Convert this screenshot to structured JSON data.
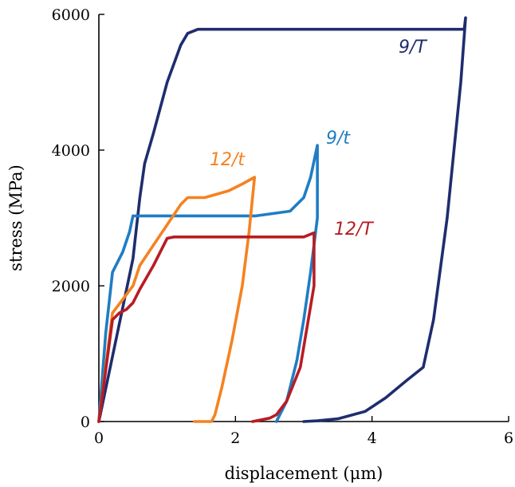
{
  "chart_data": {
    "type": "line",
    "title": "",
    "xlabel": "displacement (μm)",
    "ylabel": "stress (MPa)",
    "xlim": [
      0,
      6
    ],
    "ylim": [
      0,
      6000
    ],
    "xticks": [
      0,
      2,
      4,
      6
    ],
    "yticks": [
      0,
      2000,
      4000,
      6000
    ],
    "xtick_labels": [
      "0",
      "2",
      "4",
      "6"
    ],
    "ytick_labels": [
      "0",
      "2000",
      "4000",
      "6000"
    ],
    "grid": false,
    "legend": "none (series labelled inline)",
    "series": [
      {
        "name": "9/T",
        "color": "#1f2d6e",
        "points": [
          [
            0,
            0
          ],
          [
            0.5,
            2400
          ],
          [
            0.6,
            3300
          ],
          [
            0.67,
            3800
          ],
          [
            0.8,
            4250
          ],
          [
            1.0,
            5000
          ],
          [
            1.2,
            5550
          ],
          [
            1.3,
            5720
          ],
          [
            1.45,
            5780
          ],
          [
            3.0,
            5780
          ],
          [
            5.35,
            5780
          ],
          [
            5.37,
            5950
          ],
          [
            5.3,
            5000
          ],
          [
            5.1,
            3000
          ],
          [
            4.9,
            1500
          ],
          [
            4.75,
            800
          ],
          [
            4.5,
            600
          ],
          [
            4.2,
            350
          ],
          [
            3.9,
            150
          ],
          [
            3.5,
            40
          ],
          [
            3.2,
            10
          ],
          [
            3.0,
            0
          ]
        ]
      },
      {
        "name": "9/t",
        "color": "#1f7dc4",
        "points": [
          [
            0,
            0
          ],
          [
            0.1,
            1300
          ],
          [
            0.2,
            2200
          ],
          [
            0.35,
            2500
          ],
          [
            0.45,
            2800
          ],
          [
            0.5,
            3030
          ],
          [
            1.5,
            3030
          ],
          [
            2.3,
            3030
          ],
          [
            2.8,
            3100
          ],
          [
            3.0,
            3300
          ],
          [
            3.1,
            3600
          ],
          [
            3.2,
            4070
          ],
          [
            3.2,
            3000
          ],
          [
            3.1,
            2200
          ],
          [
            3.0,
            1500
          ],
          [
            2.9,
            900
          ],
          [
            2.75,
            300
          ],
          [
            2.6,
            0
          ]
        ]
      },
      {
        "name": "12/t",
        "color": "#f58220",
        "points": [
          [
            0,
            0
          ],
          [
            0.2,
            1600
          ],
          [
            0.35,
            1800
          ],
          [
            0.5,
            2000
          ],
          [
            0.6,
            2300
          ],
          [
            0.8,
            2600
          ],
          [
            1.0,
            2900
          ],
          [
            1.2,
            3200
          ],
          [
            1.3,
            3300
          ],
          [
            1.55,
            3300
          ],
          [
            1.9,
            3400
          ],
          [
            2.1,
            3500
          ],
          [
            2.28,
            3600
          ],
          [
            2.2,
            2800
          ],
          [
            2.1,
            2000
          ],
          [
            1.95,
            1200
          ],
          [
            1.8,
            500
          ],
          [
            1.7,
            100
          ],
          [
            1.65,
            0
          ],
          [
            1.4,
            0
          ]
        ]
      },
      {
        "name": "12/T",
        "color": "#b81c23",
        "points": [
          [
            0,
            0
          ],
          [
            0.2,
            1500
          ],
          [
            0.3,
            1600
          ],
          [
            0.4,
            1650
          ],
          [
            0.5,
            1750
          ],
          [
            0.6,
            1950
          ],
          [
            0.8,
            2300
          ],
          [
            1.0,
            2700
          ],
          [
            1.1,
            2720
          ],
          [
            2.0,
            2720
          ],
          [
            3.0,
            2720
          ],
          [
            3.15,
            2780
          ],
          [
            3.15,
            2000
          ],
          [
            3.05,
            1400
          ],
          [
            2.95,
            800
          ],
          [
            2.75,
            300
          ],
          [
            2.6,
            100
          ],
          [
            2.5,
            50
          ],
          [
            2.25,
            0
          ]
        ]
      }
    ]
  }
}
